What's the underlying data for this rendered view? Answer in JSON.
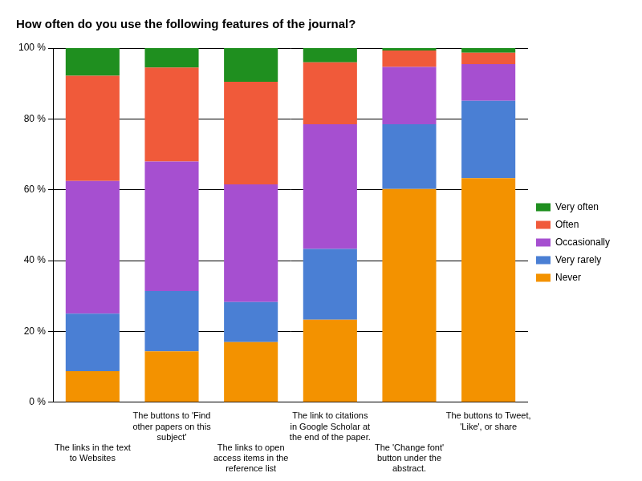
{
  "chart_data": {
    "type": "bar",
    "title": "How often do you use the following features of the journal?",
    "categories": [
      "The links in the text to Websites",
      "The buttons to 'Find other papers on this subject'",
      "The links to open access items in the reference list",
      "The link to citations in Google Scholar at the end of the paper.",
      "The 'Change font' button under the abstract.",
      "The buttons to Tweet, 'Like', or share"
    ],
    "series": [
      {
        "name": "Never",
        "color": "#f39200",
        "values": [
          8.8,
          14.4,
          17,
          23.3,
          60.2,
          63.3
        ]
      },
      {
        "name": "Very rarely",
        "color": "#4a7fd4",
        "values": [
          16.2,
          17,
          11.3,
          20,
          18.3,
          21.8
        ]
      },
      {
        "name": "Occasionally",
        "color": "#a64fd0",
        "values": [
          37.5,
          36.6,
          33.2,
          35.2,
          16.2,
          10.4
        ]
      },
      {
        "name": "Often",
        "color": "#f05a3a",
        "values": [
          29.7,
          26.5,
          29,
          17.5,
          4.6,
          3.2
        ]
      },
      {
        "name": "Very often",
        "color": "#1f8f1f",
        "values": [
          7.8,
          5.5,
          9.5,
          4,
          0.7,
          1.3
        ]
      }
    ],
    "ylim": [
      0,
      100
    ],
    "yticks": [
      {
        "value": 0,
        "label": "0 %"
      },
      {
        "value": 20,
        "label": "20 %"
      },
      {
        "value": 40,
        "label": "40 %"
      },
      {
        "value": 60,
        "label": "60 %"
      },
      {
        "value": 80,
        "label": "80 %"
      },
      {
        "value": 100,
        "label": "100 %"
      }
    ],
    "stacked": true,
    "grid": true,
    "legend": "right"
  }
}
